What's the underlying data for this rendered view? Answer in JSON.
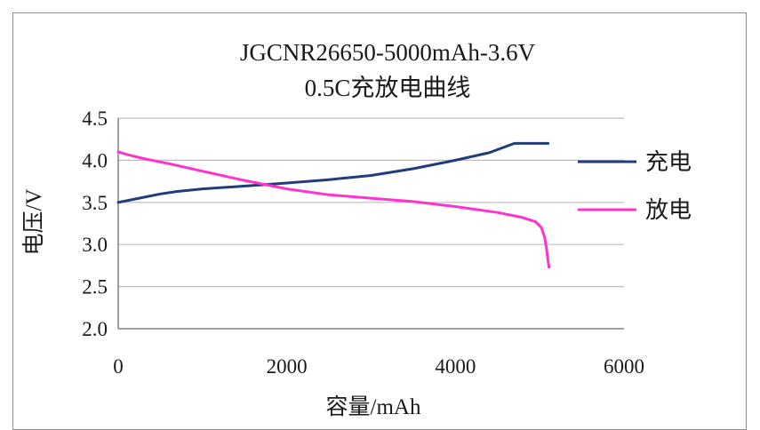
{
  "chart_data": {
    "type": "line",
    "title": "JGCNR26650-5000mAh-3.6V",
    "subtitle": "0.5C充放电曲线",
    "xlabel": "容量/mAh",
    "ylabel": "电压/V",
    "xlim": [
      0,
      6000
    ],
    "ylim": [
      2.0,
      4.5
    ],
    "xticks": [
      "0",
      "2000",
      "4000",
      "6000"
    ],
    "yticks": [
      "2.0",
      "2.5",
      "3.0",
      "3.5",
      "4.0",
      "4.5"
    ],
    "grid": "horizontal",
    "legend_position": "right",
    "series": [
      {
        "name": "充电",
        "color": "#1f3d7a",
        "points": [
          [
            0,
            3.5
          ],
          [
            150,
            3.53
          ],
          [
            300,
            3.56
          ],
          [
            500,
            3.6
          ],
          [
            700,
            3.63
          ],
          [
            1000,
            3.66
          ],
          [
            1300,
            3.68
          ],
          [
            1600,
            3.7
          ],
          [
            2000,
            3.73
          ],
          [
            2500,
            3.77
          ],
          [
            3000,
            3.82
          ],
          [
            3500,
            3.9
          ],
          [
            4000,
            4.0
          ],
          [
            4400,
            4.09
          ],
          [
            4700,
            4.2
          ],
          [
            5100,
            4.2
          ]
        ]
      },
      {
        "name": "放电",
        "color": "#ff33cc",
        "points": [
          [
            0,
            4.1
          ],
          [
            100,
            4.07
          ],
          [
            300,
            4.02
          ],
          [
            600,
            3.96
          ],
          [
            1000,
            3.87
          ],
          [
            1500,
            3.76
          ],
          [
            2000,
            3.66
          ],
          [
            2500,
            3.59
          ],
          [
            3000,
            3.55
          ],
          [
            3500,
            3.51
          ],
          [
            4000,
            3.45
          ],
          [
            4500,
            3.38
          ],
          [
            4800,
            3.32
          ],
          [
            4950,
            3.27
          ],
          [
            5020,
            3.2
          ],
          [
            5060,
            3.08
          ],
          [
            5080,
            2.95
          ],
          [
            5100,
            2.8
          ],
          [
            5110,
            2.73
          ]
        ]
      }
    ]
  }
}
